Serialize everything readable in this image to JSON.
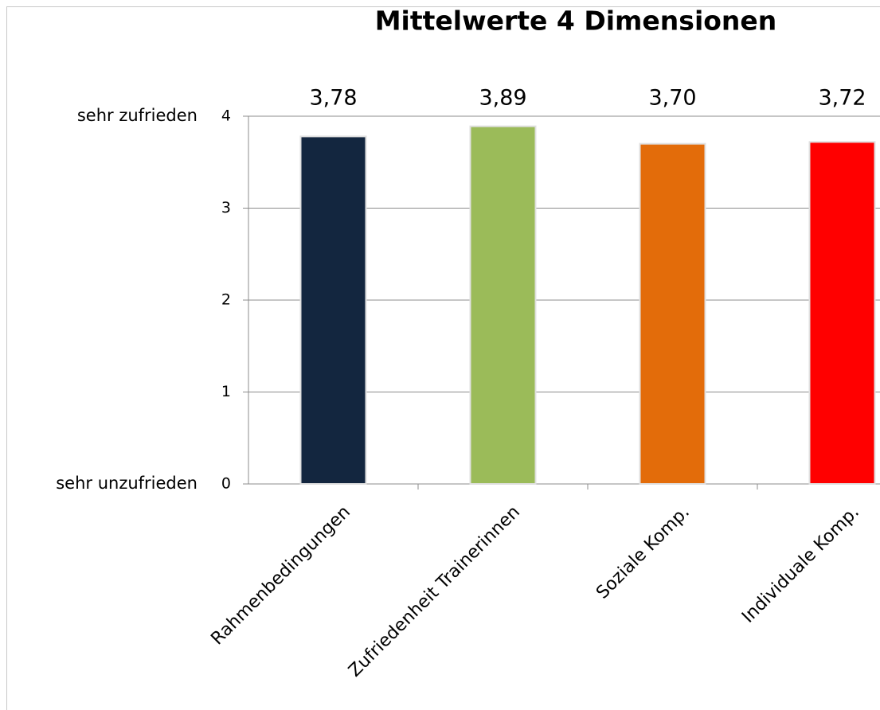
{
  "chart_data": {
    "type": "bar",
    "title": "Mittelwerte 4 Dimensionen",
    "categories": [
      "Rahmenbedingungen",
      "Zufriedenheit Trainerinnen",
      "Soziale Komp.",
      "Individuale Komp."
    ],
    "values": [
      3.78,
      3.89,
      3.7,
      3.72
    ],
    "value_labels": [
      "3,78",
      "3,89",
      "3,70",
      "3,72"
    ],
    "colors": [
      "#13263f",
      "#9bbb59",
      "#e36c0a",
      "#ff0000"
    ],
    "ylim": [
      0,
      4
    ],
    "yticks": [
      0,
      1,
      2,
      3,
      4
    ],
    "grid": true,
    "annotations": [
      {
        "text": "sehr zufrieden",
        "y": 4
      },
      {
        "text": "sehr unzufrieden",
        "y": 0
      }
    ]
  }
}
